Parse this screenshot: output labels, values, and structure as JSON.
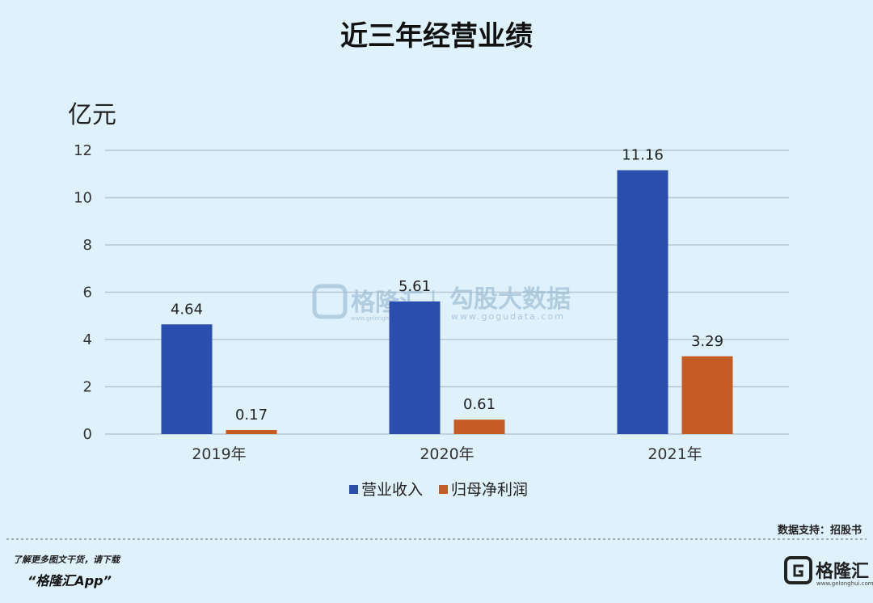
{
  "colors": {
    "background": "#dff1fb",
    "revenue": "#2a4ead",
    "profit": "#c55a22",
    "grid": "#b7c8d2"
  },
  "chart_data": {
    "type": "bar",
    "title": "近三年经营业绩",
    "unit": "亿元",
    "categories": [
      "2019年",
      "2020年",
      "2021年"
    ],
    "series": [
      {
        "name": "营业收入",
        "color": "#2a4ead",
        "values": [
          4.64,
          5.61,
          11.16
        ],
        "labels": [
          "4.64",
          "5.61",
          "11.16"
        ]
      },
      {
        "name": "归母净利润",
        "color": "#c55a22",
        "values": [
          0.17,
          0.61,
          3.29
        ],
        "labels": [
          "0.17",
          "0.61",
          "3.29"
        ]
      }
    ],
    "ylim": [
      0,
      12
    ],
    "yticks": [
      0,
      2,
      4,
      6,
      8,
      10,
      12
    ],
    "grid": true,
    "legend_position": "bottom-center"
  },
  "watermark": {
    "brand": "格隆汇",
    "separator": "|",
    "partner": "勾股大数据",
    "url": "www.gogudata.com",
    "small": "www.gelonghui.com"
  },
  "footer": {
    "source": "数据支持：招股书",
    "promo_line1": "了解更多图文干货，请下载",
    "promo_line2": "“格隆汇App”",
    "brand_name": "格隆汇",
    "brand_url": "www.gelonghui.com",
    "brand_icon": "g-logo-icon"
  }
}
